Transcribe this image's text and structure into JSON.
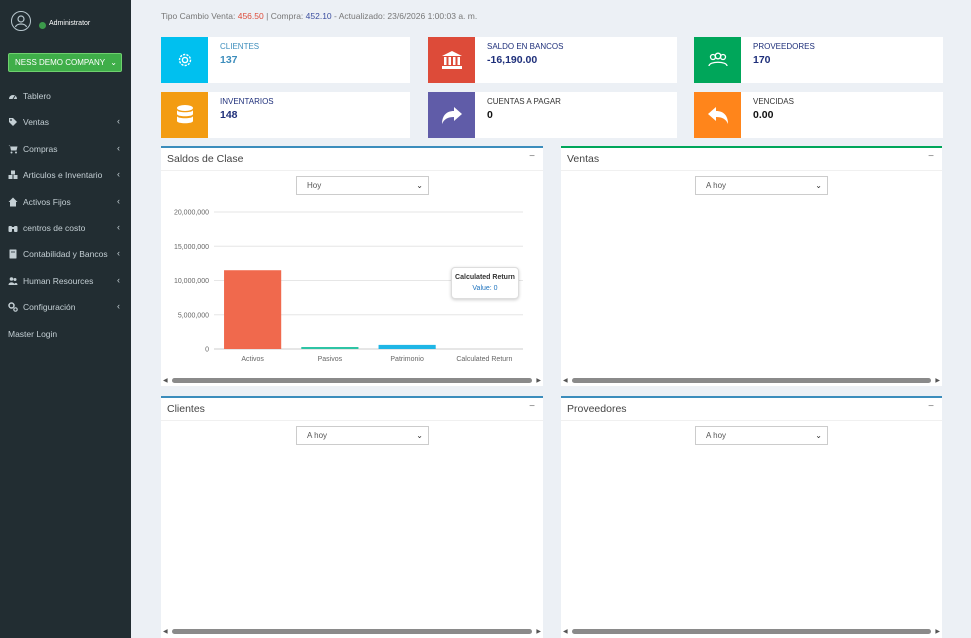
{
  "user": {
    "name": "Administrator"
  },
  "company": {
    "label": "NESS DEMO COMPANY"
  },
  "sidebar": {
    "items": [
      {
        "label": "Tablero",
        "icon": "dashboard-icon",
        "has_children": false
      },
      {
        "label": "Ventas",
        "icon": "tag-icon",
        "has_children": true
      },
      {
        "label": "Compras",
        "icon": "cart-icon",
        "has_children": true
      },
      {
        "label": "Articulos e Inventario",
        "icon": "cubes-icon",
        "has_children": true
      },
      {
        "label": "Activos Fijos",
        "icon": "home-icon",
        "has_children": true
      },
      {
        "label": "centros de costo",
        "icon": "binoculars-icon",
        "has_children": true
      },
      {
        "label": "Contabilidad y Bancos",
        "icon": "book-icon",
        "has_children": true
      },
      {
        "label": "Human Resources",
        "icon": "users-icon",
        "has_children": true
      },
      {
        "label": "Configuración",
        "icon": "cogs-icon",
        "has_children": true
      },
      {
        "label": "Master Login",
        "icon": "",
        "has_children": false
      }
    ]
  },
  "rates": {
    "venta_label": "Tipo Cambio Venta:",
    "venta_value": "456.50",
    "sep": "|",
    "compra_label": "Compra:",
    "compra_value": "452.10",
    "updated": "- Actualizado: 23/6/2026 1:00:03 a. m."
  },
  "info_boxes": [
    {
      "label": "CLIENTES",
      "value": "137",
      "icon": "gear-icon",
      "color": "#00c0ef",
      "label_color": "#3c8dbc",
      "value_color": "#3c8dbc"
    },
    {
      "label": "SALDO EN BANCOS",
      "value": "-16,190.00",
      "icon": "bank-icon",
      "color": "#dd4b39",
      "label_color": "#1e2f7a",
      "value_color": "#1e2f7a"
    },
    {
      "label": "PROVEEDORES",
      "value": "170",
      "icon": "people-icon",
      "color": "#00a65a",
      "label_color": "#1e2f7a",
      "value_color": "#1e2f7a"
    },
    {
      "label": "INVENTARIOS",
      "value": "148",
      "icon": "database-icon",
      "color": "#f39c12",
      "label_color": "#1e2f7a",
      "value_color": "#1e2f7a"
    },
    {
      "label": "CUENTAS A PAGAR",
      "value": "0",
      "icon": "share-icon",
      "color": "#605ca8",
      "label_color": "#333333",
      "value_color": "#111111"
    },
    {
      "label": "VENCIDAS",
      "value": "0.00",
      "icon": "reply-icon",
      "color": "#ff851b",
      "label_color": "#333333",
      "value_color": "#111111"
    }
  ],
  "panels": {
    "saldos": {
      "title": "Saldos de Clase",
      "select": "Hoy",
      "border": "#3c8dbc"
    },
    "ventas": {
      "title": "Ventas",
      "select": "A hoy",
      "border": "#00a65a"
    },
    "clientes": {
      "title": "Clientes",
      "select": "A hoy",
      "border": "#3c8dbc"
    },
    "proveedores": {
      "title": "Proveedores",
      "select": "A hoy",
      "border": "#3c8dbc"
    },
    "minimize_symbol": "−"
  },
  "tooltip": {
    "title": "Calculated Return",
    "value": "Value: 0"
  },
  "chart_data": {
    "type": "bar",
    "categories": [
      "Activos",
      "Pasivos",
      "Patrimonio",
      "Calculated Return"
    ],
    "values": [
      11500000,
      120000,
      600000,
      0
    ],
    "colors": [
      "#f0694d",
      "#2ec4a5",
      "#1fb6e6",
      "#aaaaaa"
    ],
    "yticks": [
      "0",
      "5,000,000",
      "10,000,000",
      "15,000,000",
      "20,000,000"
    ],
    "ylim": [
      0,
      20000000
    ],
    "grid": true
  }
}
